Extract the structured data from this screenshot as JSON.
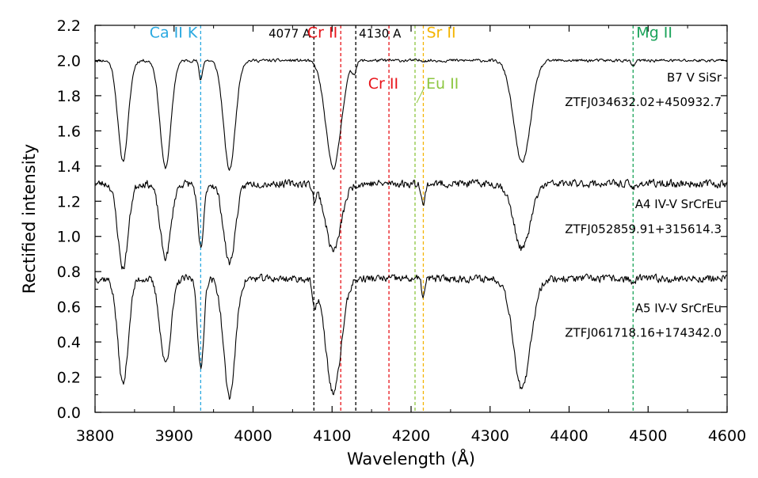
{
  "chart_data": {
    "type": "line",
    "title": "",
    "xlabel": "Wavelength (Å)",
    "ylabel": "Rectified intensity",
    "xlim": [
      3800,
      4600
    ],
    "ylim": [
      0.0,
      2.2
    ],
    "x_ticks": [
      3800,
      3900,
      4000,
      4100,
      4200,
      4300,
      4400,
      4500,
      4600
    ],
    "x_tick_labels": [
      "3800",
      "3900",
      "4000",
      "4100",
      "4200",
      "4300",
      "4400",
      "4500",
      "4600"
    ],
    "y_ticks": [
      0.0,
      0.2,
      0.4,
      0.6,
      0.8,
      1.0,
      1.2,
      1.4,
      1.6,
      1.8,
      2.0,
      2.2
    ],
    "y_tick_labels": [
      "0.0",
      "0.2",
      "0.4",
      "0.6",
      "0.8",
      "1.0",
      "1.2",
      "1.4",
      "1.6",
      "1.8",
      "2.0",
      "2.2"
    ],
    "grid": false,
    "reference_lines": [
      {
        "name": "ca-ii-k",
        "label": "Ca II K",
        "x": 3933.7,
        "color": "#29a8e0",
        "label_y": 2.13
      },
      {
        "name": "4077",
        "label": "4077 A",
        "x": 4077,
        "color": "#000000",
        "label_y": 2.13
      },
      {
        "name": "cr-ii-4111",
        "label": "Cr II",
        "x": 4111,
        "color": "#e8141a",
        "label_y": 2.13
      },
      {
        "name": "4130",
        "label": "4130 A",
        "x": 4130,
        "color": "#000000",
        "label_y": 2.13
      },
      {
        "name": "cr-ii-4172",
        "label": "Cr II",
        "x": 4172,
        "color": "#e8141a",
        "label_y": 1.84
      },
      {
        "name": "eu-ii",
        "label": "Eu II",
        "x": 4205,
        "color": "#8cc63f",
        "label_y": 1.84
      },
      {
        "name": "sr-ii",
        "label": "Sr II",
        "x": 4215.5,
        "color": "#f4b400",
        "label_y": 2.13
      },
      {
        "name": "mg-ii",
        "label": "Mg II",
        "x": 4481,
        "color": "#1aa35a",
        "label_y": 2.13
      }
    ],
    "series": [
      {
        "name": "ZTF J034632.02+450932.7",
        "spectral_type": "B7 V SiSr",
        "offset": 2.0,
        "seed": 11,
        "noise": 0.012,
        "absorption": [
          {
            "center": 3835.4,
            "depth": 0.57,
            "width": 4.0
          },
          {
            "center": 3889.1,
            "depth": 0.61,
            "width": 4.2
          },
          {
            "center": 3933.7,
            "depth": 0.11,
            "width": 1.3
          },
          {
            "center": 3970.1,
            "depth": 0.62,
            "width": 4.5
          },
          {
            "center": 4101.7,
            "depth": 0.61,
            "width": 5.5
          },
          {
            "center": 4128.0,
            "depth": 0.06,
            "width": 1.5
          },
          {
            "center": 4340.5,
            "depth": 0.58,
            "width": 6.0
          },
          {
            "center": 4481.0,
            "depth": 0.03,
            "width": 1.5
          }
        ]
      },
      {
        "name": "ZTF J052859.91+315614.3",
        "spectral_type": "A4 IV-V SrCrEu",
        "offset": 1.3,
        "seed": 23,
        "noise": 0.03,
        "absorption": [
          {
            "center": 3835.4,
            "depth": 0.48,
            "width": 4.0
          },
          {
            "center": 3889.1,
            "depth": 0.42,
            "width": 4.2
          },
          {
            "center": 3933.7,
            "depth": 0.37,
            "width": 2.3
          },
          {
            "center": 3970.1,
            "depth": 0.45,
            "width": 4.5
          },
          {
            "center": 4077.7,
            "depth": 0.08,
            "width": 1.2
          },
          {
            "center": 4101.7,
            "depth": 0.38,
            "width": 5.5
          },
          {
            "center": 4215.5,
            "depth": 0.13,
            "width": 1.2
          },
          {
            "center": 4340.5,
            "depth": 0.37,
            "width": 6.0
          },
          {
            "center": 4481.0,
            "depth": 0.03,
            "width": 1.5
          }
        ]
      },
      {
        "name": "ZTF J061718.16+174342.0",
        "spectral_type": "A5 IV-V SrCrEu",
        "offset": 0.76,
        "seed": 37,
        "noise": 0.03,
        "absorption": [
          {
            "center": 3835.4,
            "depth": 0.6,
            "width": 4.0
          },
          {
            "center": 3889.1,
            "depth": 0.48,
            "width": 4.2
          },
          {
            "center": 3933.7,
            "depth": 0.52,
            "width": 2.3
          },
          {
            "center": 3970.1,
            "depth": 0.67,
            "width": 4.5
          },
          {
            "center": 4077.7,
            "depth": 0.16,
            "width": 1.4
          },
          {
            "center": 4101.7,
            "depth": 0.65,
            "width": 5.5
          },
          {
            "center": 4215.5,
            "depth": 0.1,
            "width": 1.2
          },
          {
            "center": 4340.5,
            "depth": 0.63,
            "width": 6.0
          },
          {
            "center": 4481.0,
            "depth": 0.03,
            "width": 1.5
          }
        ]
      }
    ],
    "star_labels": [
      {
        "name": "b7-type",
        "text": "B7 V SiSr",
        "y": 1.88
      },
      {
        "name": "b7-id",
        "text": "ZTFJ034632.02+450932.7",
        "y": 1.74
      },
      {
        "name": "a4-type",
        "text": "A4 IV-V SrCrEu",
        "y": 1.16
      },
      {
        "name": "a4-id",
        "text": "ZTFJ052859.91+315614.3",
        "y": 1.02
      },
      {
        "name": "a5-type",
        "text": "A5 IV-V SrCrEu",
        "y": 0.57
      },
      {
        "name": "a5-id",
        "text": "ZTFJ061718.16+174342.0",
        "y": 0.43
      }
    ]
  }
}
